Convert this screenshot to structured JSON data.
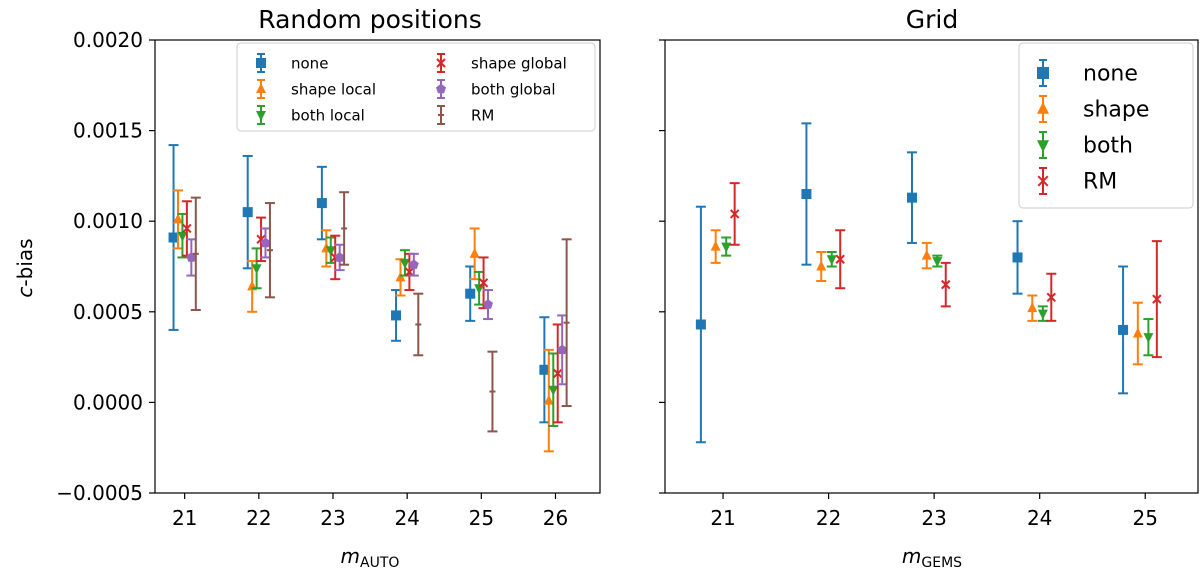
{
  "chart_data": [
    {
      "type": "scatter",
      "title": "Random positions",
      "xlabel_main": "m",
      "xlabel_sub": "AUTO",
      "ylabel_main": "c",
      "ylabel_rest": "-bias",
      "xlim": [
        20.6,
        26.6
      ],
      "ylim": [
        -0.0005,
        0.002
      ],
      "x_ticks": [
        21,
        22,
        23,
        24,
        25,
        26
      ],
      "y_ticks": [
        -0.0005,
        0.0,
        0.0005,
        0.001,
        0.0015,
        0.002
      ],
      "y_tick_labels": [
        "−0.0005",
        "0.0000",
        "0.0005",
        "0.0010",
        "0.0015",
        "0.0020"
      ],
      "legend_position": "top-right",
      "legend_columns": 2,
      "series": [
        {
          "name": "none",
          "color": "#1f77b4",
          "marker": "square",
          "offset": -0.15,
          "x": [
            21,
            22,
            23,
            24,
            25,
            26
          ],
          "y": [
            0.00091,
            0.00105,
            0.0011,
            0.00048,
            0.0006,
            0.00018
          ],
          "err": [
            0.00051,
            0.00031,
            0.0002,
            0.00014,
            0.00015,
            0.00029
          ]
        },
        {
          "name": "shape local",
          "color": "#ff7f0e",
          "marker": "triangle-up",
          "offset": -0.09,
          "x": [
            21,
            22,
            23,
            24,
            25,
            26
          ],
          "y": [
            0.00101,
            0.00064,
            0.00085,
            0.00069,
            0.00082,
            1e-05
          ],
          "err": [
            0.00016,
            0.00014,
            0.0001,
            0.0001,
            0.00014,
            0.00028
          ]
        },
        {
          "name": "both local",
          "color": "#2ca02c",
          "marker": "triangle-down",
          "offset": -0.03,
          "x": [
            21,
            22,
            23,
            24,
            25,
            26
          ],
          "y": [
            0.00092,
            0.00074,
            0.00084,
            0.00077,
            0.00063,
            7e-05
          ],
          "err": [
            0.00012,
            0.00011,
            7e-05,
            7e-05,
            9e-05,
            0.0002
          ]
        },
        {
          "name": "shape global",
          "color": "#d62728",
          "marker": "x",
          "offset": 0.03,
          "x": [
            21,
            22,
            23,
            24,
            25,
            26
          ],
          "y": [
            0.00096,
            0.0009,
            0.0008,
            0.00072,
            0.00066,
            0.00016
          ],
          "err": [
            0.00015,
            0.00012,
            0.00012,
            0.0001,
            0.00014,
            0.00027
          ]
        },
        {
          "name": "both global",
          "color": "#9467bd",
          "marker": "pentagon",
          "offset": 0.09,
          "x": [
            21,
            22,
            23,
            24,
            25,
            26
          ],
          "y": [
            0.0008,
            0.00088,
            0.0008,
            0.00076,
            0.00054,
            0.00029
          ],
          "err": [
            0.0001,
            8e-05,
            7e-05,
            6e-05,
            8e-05,
            0.00019
          ]
        },
        {
          "name": "RM",
          "color": "#8c564b",
          "marker": "dash",
          "offset": 0.15,
          "x": [
            21,
            22,
            23,
            24,
            25,
            26
          ],
          "y": [
            0.00082,
            0.00084,
            0.00096,
            0.00043,
            6e-05,
            0.00044
          ],
          "err": [
            0.00031,
            0.00026,
            0.0002,
            0.00017,
            0.00022,
            0.00046
          ]
        }
      ]
    },
    {
      "type": "scatter",
      "title": "Grid",
      "xlabel_main": "m",
      "xlabel_sub": "GEMS",
      "xlim": [
        20.45,
        25.5
      ],
      "ylim": [
        -0.0005,
        0.002
      ],
      "x_ticks": [
        21,
        22,
        23,
        24,
        25
      ],
      "legend_position": "top-right",
      "legend_columns": 1,
      "series": [
        {
          "name": "none",
          "color": "#1f77b4",
          "marker": "square",
          "offset": -0.21,
          "x": [
            21,
            22,
            23,
            24,
            25
          ],
          "y": [
            0.00043,
            0.00115,
            0.00113,
            0.0008,
            0.0004
          ],
          "err": [
            0.00065,
            0.00039,
            0.00025,
            0.0002,
            0.00035
          ]
        },
        {
          "name": "shape",
          "color": "#ff7f0e",
          "marker": "triangle-up",
          "offset": -0.07,
          "x": [
            21,
            22,
            23,
            24,
            25
          ],
          "y": [
            0.00086,
            0.00075,
            0.00081,
            0.00052,
            0.00038
          ],
          "err": [
            9e-05,
            8e-05,
            7e-05,
            7e-05,
            0.00017
          ]
        },
        {
          "name": "both",
          "color": "#2ca02c",
          "marker": "triangle-down",
          "offset": 0.03,
          "x": [
            21,
            22,
            23,
            24,
            25
          ],
          "y": [
            0.00086,
            0.00079,
            0.00078,
            0.00049,
            0.00036
          ],
          "err": [
            5e-05,
            4e-05,
            3e-05,
            4e-05,
            0.0001
          ]
        },
        {
          "name": "RM",
          "color": "#d62728",
          "marker": "x",
          "offset": 0.11,
          "x": [
            21,
            22,
            23,
            24,
            25
          ],
          "y": [
            0.00104,
            0.00079,
            0.00065,
            0.00058,
            0.00057
          ],
          "err": [
            0.00017,
            0.00016,
            0.00012,
            0.00013,
            0.00032
          ]
        }
      ]
    }
  ]
}
